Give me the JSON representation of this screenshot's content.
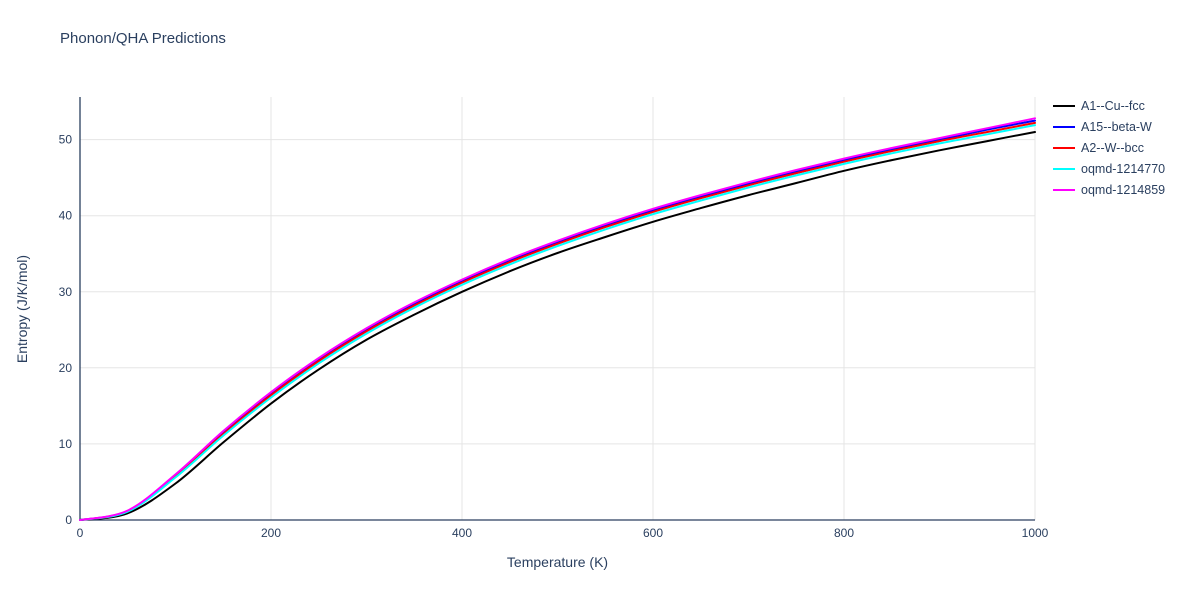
{
  "title": "Phonon/QHA Predictions",
  "colors": {
    "title_text": "#2a3f5f",
    "axis_text": "#2a3f5f",
    "axis_line": "#2a3f5f",
    "grid": "#e5e5e5",
    "background": "#ffffff"
  },
  "chart_data": {
    "type": "line",
    "title": "Phonon/QHA Predictions",
    "xlabel": "Temperature (K)",
    "ylabel": "Entropy (J/K/mol)",
    "xlim": [
      0,
      1000
    ],
    "ylim": [
      0,
      55.6
    ],
    "xticks": [
      0,
      200,
      400,
      600,
      800,
      1000
    ],
    "yticks": [
      0,
      10,
      20,
      30,
      40,
      50
    ],
    "grid": true,
    "legend_position": "right-outside",
    "x": [
      0,
      50,
      100,
      150,
      200,
      250,
      300,
      350,
      400,
      450,
      500,
      550,
      600,
      650,
      700,
      750,
      800,
      850,
      900,
      950,
      1000
    ],
    "series": [
      {
        "name": "A1--Cu--fcc",
        "color": "#000000",
        "values": [
          0,
          0.9,
          4.8,
          10.2,
          15.3,
          19.8,
          23.7,
          27.0,
          30.0,
          32.7,
          35.1,
          37.2,
          39.2,
          41.0,
          42.7,
          44.3,
          45.9,
          47.3,
          48.6,
          49.8,
          51.0
        ]
      },
      {
        "name": "A15--beta-W",
        "color": "#0000ff",
        "values": [
          0,
          1.2,
          5.9,
          11.5,
          16.6,
          21.1,
          25.0,
          28.4,
          31.4,
          34.1,
          36.5,
          38.7,
          40.7,
          42.5,
          44.2,
          45.8,
          47.3,
          48.7,
          50.0,
          51.3,
          52.5
        ]
      },
      {
        "name": "A2--W--bcc",
        "color": "#ff0000",
        "values": [
          0,
          1.15,
          5.75,
          11.3,
          16.4,
          20.9,
          24.8,
          28.2,
          31.2,
          33.9,
          36.3,
          38.5,
          40.5,
          42.3,
          44.0,
          45.6,
          47.1,
          48.5,
          49.8,
          51.0,
          52.2
        ]
      },
      {
        "name": "oqmd-1214770",
        "color": "#00ffff",
        "values": [
          0,
          1.1,
          5.6,
          11.1,
          16.1,
          20.6,
          24.5,
          27.9,
          30.9,
          33.6,
          36.0,
          38.2,
          40.2,
          42.0,
          43.7,
          45.3,
          46.8,
          48.2,
          49.5,
          50.7,
          51.9
        ]
      },
      {
        "name": "oqmd-1214859",
        "color": "#ff00ff",
        "values": [
          0,
          1.25,
          6.0,
          11.7,
          16.8,
          21.3,
          25.2,
          28.6,
          31.6,
          34.3,
          36.7,
          38.9,
          40.9,
          42.7,
          44.4,
          46.0,
          47.5,
          48.9,
          50.2,
          51.5,
          52.8
        ]
      }
    ]
  }
}
